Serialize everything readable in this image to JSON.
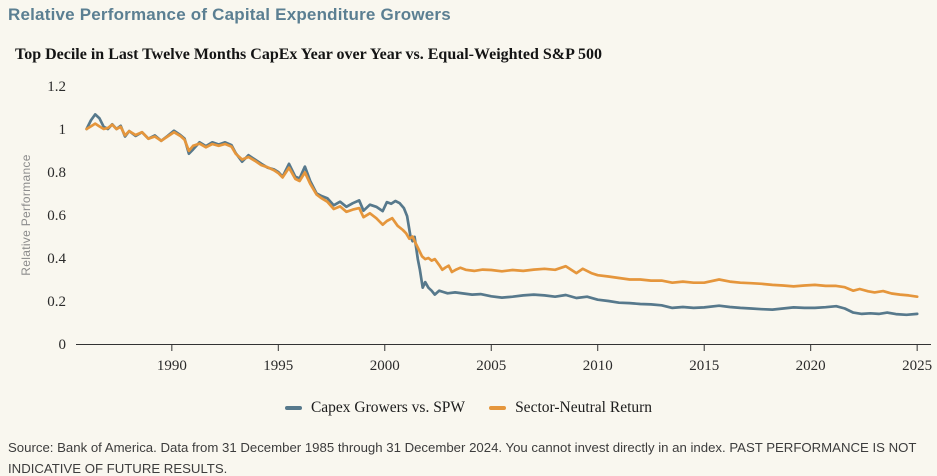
{
  "title": "Relative Performance of Capital Expenditure Growers",
  "source_note": "Source: Bank of America. Data from 31 December 1985 through 31 December 2024. You cannot invest directly in an index. PAST PERFORMANCE IS NOT INDICATIVE OF FUTURE RESULTS.",
  "colors": {
    "background": "#f9f7ef",
    "title": "#5b7f92",
    "axis": "#333333",
    "axis_label_gray": "#8c8c8c",
    "capex_line": "#57798c",
    "sector_line": "#e5963c"
  },
  "chart_data": {
    "type": "line",
    "title": "Top Decile in Last Twelve Months CapEx Year over Year vs. Equal-Weighted S&P 500",
    "xlabel": "",
    "ylabel": "Relative Performance",
    "xlim": [
      1985.5,
      2025.65
    ],
    "ylim": [
      0,
      1.2
    ],
    "x_ticks": [
      1990,
      1995,
      2000,
      2005,
      2010,
      2015,
      2020,
      2025
    ],
    "y_ticks": [
      0,
      0.2,
      0.4,
      0.6,
      0.8,
      1,
      1.2
    ],
    "y_tick_labels": [
      "0",
      "0.2",
      "0.4",
      "0.6",
      "0.8",
      "1",
      "1.2"
    ],
    "grid": false,
    "legend_position": "bottom-center",
    "series": [
      {
        "name": "Capex Growers vs. SPW",
        "color": "#57798c",
        "points": [
          [
            1986.0,
            1.0
          ],
          [
            1986.2,
            1.04
          ],
          [
            1986.4,
            1.068
          ],
          [
            1986.6,
            1.05
          ],
          [
            1986.8,
            1.01
          ],
          [
            1987.0,
            1.0
          ],
          [
            1987.2,
            1.022
          ],
          [
            1987.4,
            1.0
          ],
          [
            1987.6,
            1.015
          ],
          [
            1987.8,
            0.965
          ],
          [
            1988.0,
            0.99
          ],
          [
            1988.3,
            0.968
          ],
          [
            1988.6,
            0.985
          ],
          [
            1988.9,
            0.955
          ],
          [
            1989.2,
            0.97
          ],
          [
            1989.5,
            0.945
          ],
          [
            1989.8,
            0.968
          ],
          [
            1990.1,
            0.992
          ],
          [
            1990.4,
            0.972
          ],
          [
            1990.6,
            0.955
          ],
          [
            1990.8,
            0.885
          ],
          [
            1991.0,
            0.905
          ],
          [
            1991.3,
            0.938
          ],
          [
            1991.6,
            0.92
          ],
          [
            1991.9,
            0.938
          ],
          [
            1992.2,
            0.928
          ],
          [
            1992.5,
            0.938
          ],
          [
            1992.8,
            0.925
          ],
          [
            1993.0,
            0.888
          ],
          [
            1993.3,
            0.848
          ],
          [
            1993.6,
            0.878
          ],
          [
            1993.9,
            0.858
          ],
          [
            1994.2,
            0.838
          ],
          [
            1994.5,
            0.82
          ],
          [
            1994.8,
            0.812
          ],
          [
            1995.0,
            0.8
          ],
          [
            1995.2,
            0.778
          ],
          [
            1995.5,
            0.838
          ],
          [
            1995.8,
            0.778
          ],
          [
            1996.0,
            0.77
          ],
          [
            1996.25,
            0.825
          ],
          [
            1996.5,
            0.758
          ],
          [
            1996.8,
            0.7
          ],
          [
            1997.0,
            0.69
          ],
          [
            1997.3,
            0.678
          ],
          [
            1997.6,
            0.645
          ],
          [
            1997.9,
            0.662
          ],
          [
            1998.2,
            0.638
          ],
          [
            1998.5,
            0.655
          ],
          [
            1998.8,
            0.668
          ],
          [
            1999.0,
            0.62
          ],
          [
            1999.3,
            0.648
          ],
          [
            1999.6,
            0.638
          ],
          [
            1999.9,
            0.618
          ],
          [
            2000.1,
            0.66
          ],
          [
            2000.3,
            0.652
          ],
          [
            2000.5,
            0.665
          ],
          [
            2000.7,
            0.655
          ],
          [
            2000.9,
            0.632
          ],
          [
            2001.05,
            0.595
          ],
          [
            2001.2,
            0.505
          ],
          [
            2001.3,
            0.478
          ],
          [
            2001.4,
            0.498
          ],
          [
            2001.55,
            0.395
          ],
          [
            2001.65,
            0.345
          ],
          [
            2001.78,
            0.262
          ],
          [
            2001.9,
            0.288
          ],
          [
            2002.05,
            0.262
          ],
          [
            2002.2,
            0.248
          ],
          [
            2002.35,
            0.23
          ],
          [
            2002.55,
            0.248
          ],
          [
            2002.75,
            0.242
          ],
          [
            2002.95,
            0.236
          ],
          [
            2003.3,
            0.24
          ],
          [
            2003.7,
            0.235
          ],
          [
            2004.1,
            0.23
          ],
          [
            2004.5,
            0.232
          ],
          [
            2005.0,
            0.222
          ],
          [
            2005.5,
            0.216
          ],
          [
            2006.0,
            0.22
          ],
          [
            2006.5,
            0.226
          ],
          [
            2007.0,
            0.23
          ],
          [
            2007.5,
            0.226
          ],
          [
            2008.0,
            0.22
          ],
          [
            2008.5,
            0.228
          ],
          [
            2009.0,
            0.214
          ],
          [
            2009.5,
            0.22
          ],
          [
            2010.0,
            0.206
          ],
          [
            2010.5,
            0.2
          ],
          [
            2011.0,
            0.192
          ],
          [
            2011.5,
            0.19
          ],
          [
            2012.0,
            0.186
          ],
          [
            2012.5,
            0.184
          ],
          [
            2013.0,
            0.18
          ],
          [
            2013.5,
            0.168
          ],
          [
            2014.0,
            0.172
          ],
          [
            2014.5,
            0.168
          ],
          [
            2015.0,
            0.17
          ],
          [
            2015.7,
            0.178
          ],
          [
            2016.2,
            0.172
          ],
          [
            2016.7,
            0.168
          ],
          [
            2017.2,
            0.165
          ],
          [
            2017.7,
            0.162
          ],
          [
            2018.2,
            0.16
          ],
          [
            2018.7,
            0.165
          ],
          [
            2019.2,
            0.17
          ],
          [
            2019.7,
            0.168
          ],
          [
            2020.2,
            0.168
          ],
          [
            2020.7,
            0.171
          ],
          [
            2021.2,
            0.176
          ],
          [
            2021.6,
            0.165
          ],
          [
            2022.0,
            0.146
          ],
          [
            2022.4,
            0.14
          ],
          [
            2022.8,
            0.143
          ],
          [
            2023.2,
            0.14
          ],
          [
            2023.6,
            0.146
          ],
          [
            2024.0,
            0.139
          ],
          [
            2024.5,
            0.136
          ],
          [
            2025.0,
            0.14
          ]
        ]
      },
      {
        "name": "Sector-Neutral Return",
        "color": "#e5963c",
        "points": [
          [
            1986.0,
            1.0
          ],
          [
            1986.2,
            1.012
          ],
          [
            1986.4,
            1.025
          ],
          [
            1986.6,
            1.012
          ],
          [
            1986.8,
            1.0
          ],
          [
            1987.0,
            1.005
          ],
          [
            1987.2,
            1.02
          ],
          [
            1987.4,
            1.0
          ],
          [
            1987.6,
            1.01
          ],
          [
            1987.8,
            0.97
          ],
          [
            1988.0,
            0.99
          ],
          [
            1988.3,
            0.972
          ],
          [
            1988.6,
            0.985
          ],
          [
            1988.9,
            0.955
          ],
          [
            1989.2,
            0.965
          ],
          [
            1989.5,
            0.945
          ],
          [
            1989.8,
            0.965
          ],
          [
            1990.1,
            0.985
          ],
          [
            1990.4,
            0.968
          ],
          [
            1990.6,
            0.95
          ],
          [
            1990.8,
            0.898
          ],
          [
            1991.0,
            0.922
          ],
          [
            1991.3,
            0.932
          ],
          [
            1991.6,
            0.915
          ],
          [
            1991.9,
            0.93
          ],
          [
            1992.2,
            0.922
          ],
          [
            1992.5,
            0.93
          ],
          [
            1992.8,
            0.918
          ],
          [
            1993.0,
            0.885
          ],
          [
            1993.3,
            0.858
          ],
          [
            1993.6,
            0.87
          ],
          [
            1993.9,
            0.852
          ],
          [
            1994.2,
            0.832
          ],
          [
            1994.5,
            0.822
          ],
          [
            1994.8,
            0.808
          ],
          [
            1995.0,
            0.795
          ],
          [
            1995.2,
            0.775
          ],
          [
            1995.5,
            0.82
          ],
          [
            1995.8,
            0.768
          ],
          [
            1996.0,
            0.758
          ],
          [
            1996.25,
            0.798
          ],
          [
            1996.5,
            0.745
          ],
          [
            1996.8,
            0.695
          ],
          [
            1997.0,
            0.68
          ],
          [
            1997.3,
            0.662
          ],
          [
            1997.6,
            0.628
          ],
          [
            1997.9,
            0.64
          ],
          [
            1998.2,
            0.615
          ],
          [
            1998.5,
            0.625
          ],
          [
            1998.8,
            0.632
          ],
          [
            1999.0,
            0.59
          ],
          [
            1999.3,
            0.608
          ],
          [
            1999.6,
            0.585
          ],
          [
            1999.9,
            0.555
          ],
          [
            2000.1,
            0.572
          ],
          [
            2000.35,
            0.585
          ],
          [
            2000.6,
            0.55
          ],
          [
            2000.85,
            0.53
          ],
          [
            2001.0,
            0.515
          ],
          [
            2001.15,
            0.49
          ],
          [
            2001.3,
            0.5
          ],
          [
            2001.45,
            0.468
          ],
          [
            2001.6,
            0.438
          ],
          [
            2001.75,
            0.408
          ],
          [
            2001.9,
            0.395
          ],
          [
            2002.05,
            0.4
          ],
          [
            2002.2,
            0.388
          ],
          [
            2002.35,
            0.395
          ],
          [
            2002.55,
            0.368
          ],
          [
            2002.7,
            0.345
          ],
          [
            2002.85,
            0.356
          ],
          [
            2003.0,
            0.364
          ],
          [
            2003.15,
            0.335
          ],
          [
            2003.35,
            0.346
          ],
          [
            2003.55,
            0.355
          ],
          [
            2003.8,
            0.345
          ],
          [
            2004.2,
            0.34
          ],
          [
            2004.6,
            0.346
          ],
          [
            2005.0,
            0.344
          ],
          [
            2005.5,
            0.338
          ],
          [
            2006.0,
            0.344
          ],
          [
            2006.5,
            0.34
          ],
          [
            2007.0,
            0.346
          ],
          [
            2007.5,
            0.35
          ],
          [
            2008.0,
            0.345
          ],
          [
            2008.5,
            0.362
          ],
          [
            2009.0,
            0.33
          ],
          [
            2009.3,
            0.35
          ],
          [
            2009.7,
            0.33
          ],
          [
            2010.0,
            0.32
          ],
          [
            2010.5,
            0.314
          ],
          [
            2011.0,
            0.307
          ],
          [
            2011.5,
            0.3
          ],
          [
            2012.0,
            0.3
          ],
          [
            2012.5,
            0.295
          ],
          [
            2013.0,
            0.295
          ],
          [
            2013.5,
            0.285
          ],
          [
            2014.0,
            0.29
          ],
          [
            2014.5,
            0.285
          ],
          [
            2015.0,
            0.285
          ],
          [
            2015.7,
            0.3
          ],
          [
            2016.2,
            0.29
          ],
          [
            2016.7,
            0.285
          ],
          [
            2017.2,
            0.283
          ],
          [
            2017.7,
            0.28
          ],
          [
            2018.2,
            0.275
          ],
          [
            2018.7,
            0.272
          ],
          [
            2019.2,
            0.268
          ],
          [
            2019.7,
            0.272
          ],
          [
            2020.2,
            0.275
          ],
          [
            2020.7,
            0.27
          ],
          [
            2021.2,
            0.27
          ],
          [
            2021.6,
            0.264
          ],
          [
            2022.0,
            0.248
          ],
          [
            2022.3,
            0.256
          ],
          [
            2022.7,
            0.245
          ],
          [
            2023.0,
            0.24
          ],
          [
            2023.4,
            0.246
          ],
          [
            2023.8,
            0.235
          ],
          [
            2024.2,
            0.23
          ],
          [
            2024.6,
            0.226
          ],
          [
            2025.0,
            0.22
          ]
        ]
      }
    ]
  }
}
